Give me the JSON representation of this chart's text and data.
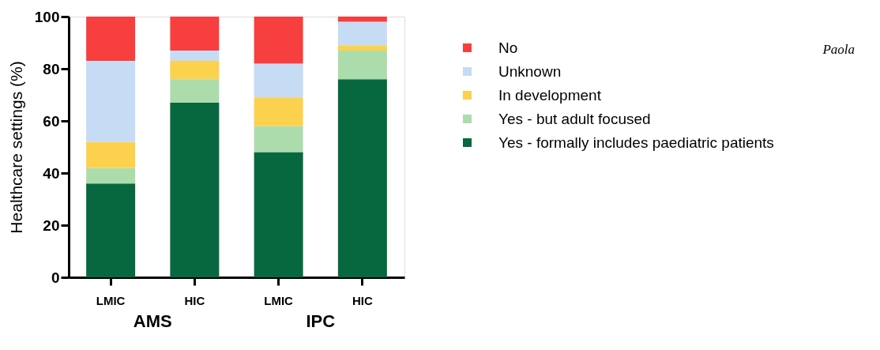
{
  "chart_data": {
    "type": "bar",
    "stacked": true,
    "ylabel": "Healthcare settings (%)",
    "categories": [
      "LMIC",
      "HIC",
      "LMIC",
      "HIC"
    ],
    "series": [
      {
        "name": "Yes - formally includes paediatric patients",
        "color": "#07683f",
        "values": [
          36,
          67,
          48,
          76
        ]
      },
      {
        "name": "Yes - but adult focused",
        "color": "#acdcab",
        "values": [
          6,
          9,
          10,
          11
        ]
      },
      {
        "name": "In development",
        "color": "#fbd14e",
        "values": [
          10,
          7,
          11,
          2
        ]
      },
      {
        "name": "Unknown",
        "color": "#c6dbf4",
        "values": [
          31,
          4,
          13,
          9
        ]
      },
      {
        "name": "No",
        "color": "#f73f3f",
        "values": [
          17,
          13,
          18,
          2
        ]
      }
    ],
    "ylim": [
      0,
      100
    ],
    "yticks": [
      0,
      20,
      40,
      60,
      80,
      100
    ],
    "grid": false,
    "legend": "right",
    "annotations": [
      "AMS",
      "IPC",
      "Paola"
    ]
  }
}
